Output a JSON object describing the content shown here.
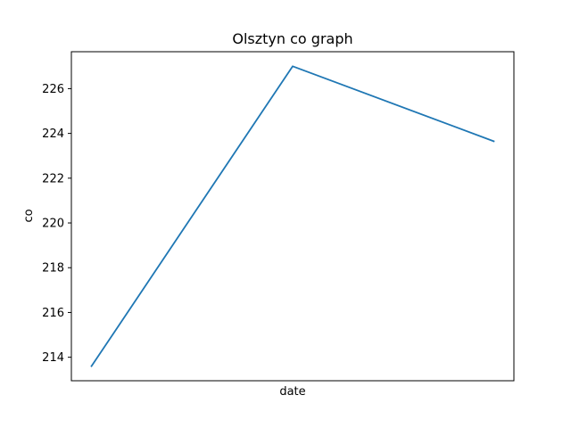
{
  "chart_data": {
    "type": "line",
    "title": "Olsztyn co graph",
    "xlabel": "date",
    "ylabel": "co",
    "x": [
      0,
      1,
      2
    ],
    "series": [
      {
        "values": [
          213.6,
          227.0,
          223.65
        ],
        "color": "#1f77b4"
      }
    ],
    "xlim": [
      -0.1,
      2.1
    ],
    "ylim": [
      212.95,
      227.65
    ],
    "y_ticks": [
      214,
      216,
      218,
      220,
      222,
      224,
      226
    ],
    "x_ticks_shown": false,
    "grid": false,
    "legend": "none"
  }
}
